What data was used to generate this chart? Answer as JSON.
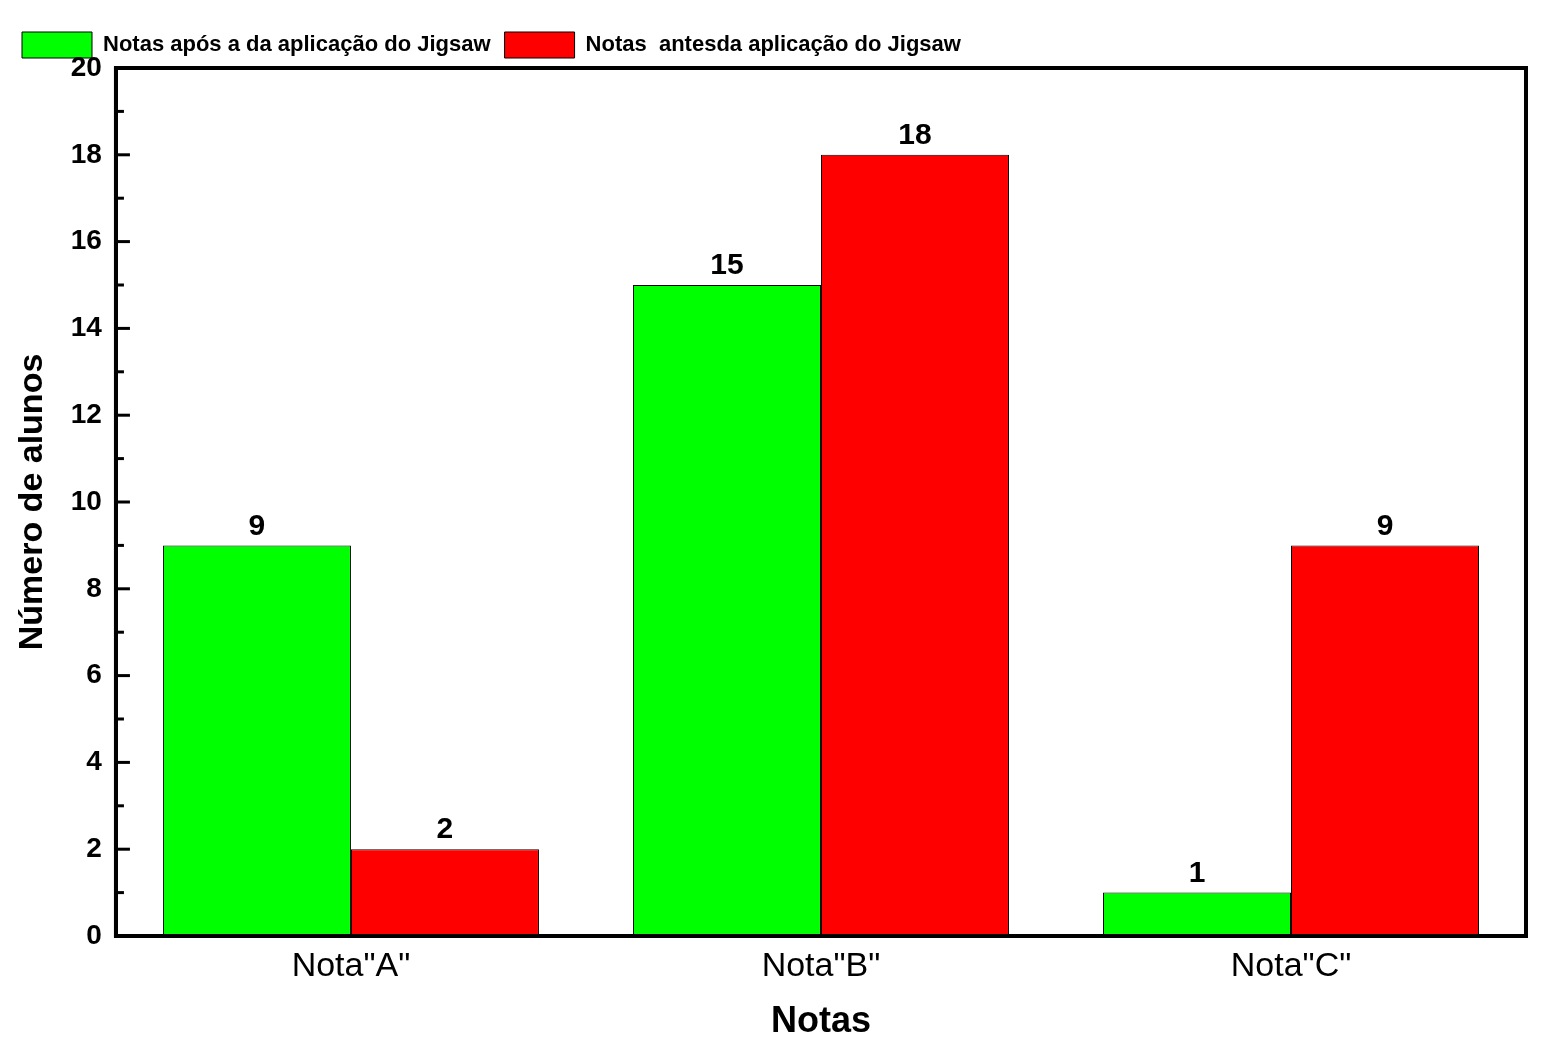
{
  "chart_data": {
    "type": "bar",
    "xlabel": "Notas",
    "ylabel": "Número de alunos",
    "categories": [
      "Nota\"A\"",
      "Nota\"B\"",
      "Nota\"C\""
    ],
    "series": [
      {
        "name": "Notas após a da aplicação do Jigsaw",
        "color": "#00ff00",
        "values": [
          9,
          15,
          1
        ]
      },
      {
        "name": "Notas  antesda aplicação do Jigsaw",
        "color": "#ff0000",
        "values": [
          2,
          18,
          9
        ]
      }
    ],
    "ylim": [
      0,
      20
    ],
    "yticks": [
      0,
      2,
      4,
      6,
      8,
      10,
      12,
      14,
      16,
      18,
      20
    ],
    "grid": false,
    "legend": "top left",
    "data_labels": true
  }
}
